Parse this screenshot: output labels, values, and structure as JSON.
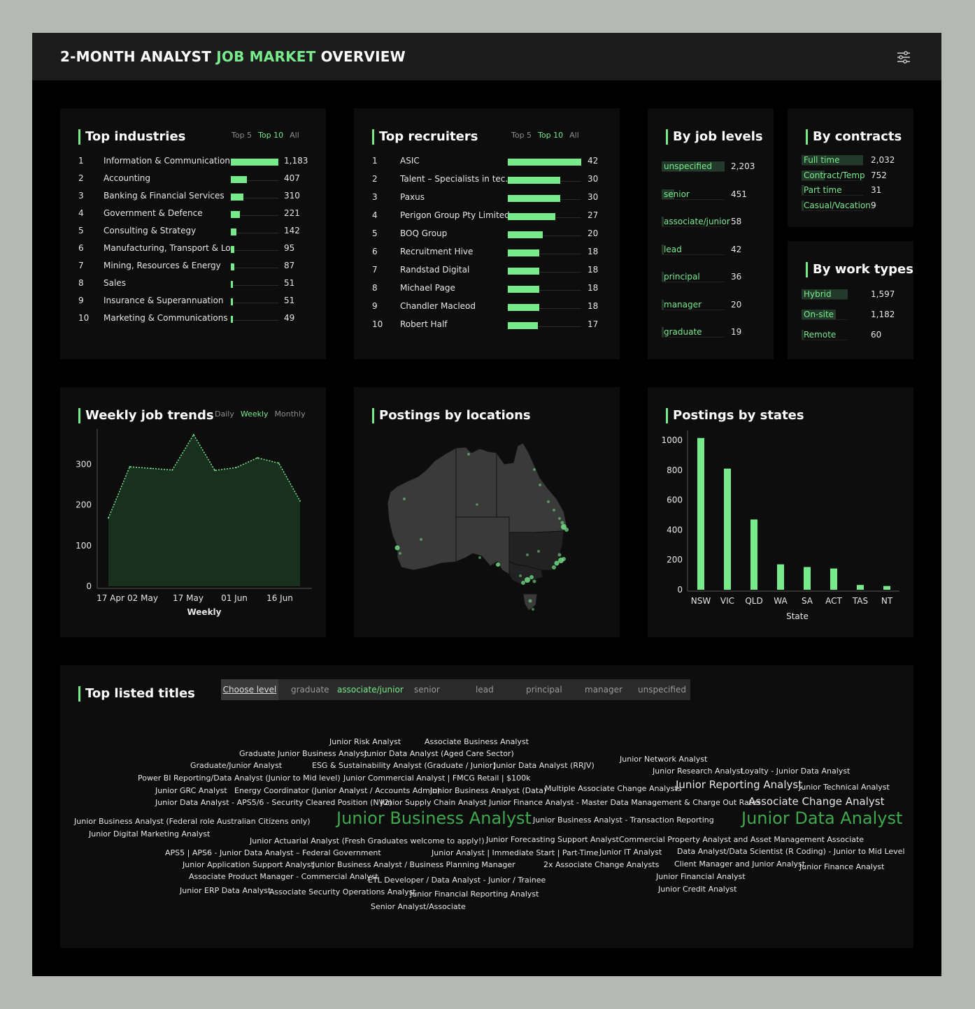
{
  "header": {
    "title_part1": "2-MONTH ANALYST ",
    "title_highlight": "JOB MARKET",
    "title_part2": " OVERVIEW",
    "settings_icon": "sliders-icon"
  },
  "colors": {
    "accent": "#77ea8c",
    "card_bg": "#0d0d0d",
    "page_bg": "#000000"
  },
  "industries": {
    "title": "Top industries",
    "tabs": [
      "Top 5",
      "Top 10",
      "All"
    ],
    "active_tab": "Top 10",
    "max": 1183,
    "rows": [
      {
        "rank": "1",
        "label": "Information & Communication ..",
        "value": 1183,
        "display": "1,183"
      },
      {
        "rank": "2",
        "label": "Accounting",
        "value": 407,
        "display": "407"
      },
      {
        "rank": "3",
        "label": "Banking & Financial Services",
        "value": 310,
        "display": "310"
      },
      {
        "rank": "4",
        "label": "Government & Defence",
        "value": 221,
        "display": "221"
      },
      {
        "rank": "5",
        "label": "Consulting & Strategy",
        "value": 142,
        "display": "142"
      },
      {
        "rank": "6",
        "label": "Manufacturing, Transport & Lo..",
        "value": 95,
        "display": "95"
      },
      {
        "rank": "7",
        "label": "Mining, Resources & Energy",
        "value": 87,
        "display": "87"
      },
      {
        "rank": "8",
        "label": "Sales",
        "value": 51,
        "display": "51"
      },
      {
        "rank": "9",
        "label": "Insurance & Superannuation",
        "value": 51,
        "display": "51"
      },
      {
        "rank": "10",
        "label": "Marketing & Communications",
        "value": 49,
        "display": "49"
      }
    ]
  },
  "recruiters": {
    "title": "Top recruiters",
    "tabs": [
      "Top 5",
      "Top 10",
      "All"
    ],
    "active_tab": "Top 10",
    "max": 42,
    "rows": [
      {
        "rank": "1",
        "label": "ASIC",
        "value": 42,
        "display": "42"
      },
      {
        "rank": "2",
        "label": "Talent – Specialists in tec..",
        "value": 30,
        "display": "30"
      },
      {
        "rank": "3",
        "label": "Paxus",
        "value": 30,
        "display": "30"
      },
      {
        "rank": "4",
        "label": "Perigon Group Pty Limited",
        "value": 27,
        "display": "27"
      },
      {
        "rank": "5",
        "label": "BOQ Group",
        "value": 20,
        "display": "20"
      },
      {
        "rank": "6",
        "label": "Recruitment Hive",
        "value": 18,
        "display": "18"
      },
      {
        "rank": "7",
        "label": "Randstad Digital",
        "value": 18,
        "display": "18"
      },
      {
        "rank": "8",
        "label": "Michael Page",
        "value": 18,
        "display": "18"
      },
      {
        "rank": "9",
        "label": "Chandler Macleod",
        "value": 18,
        "display": "18"
      },
      {
        "rank": "10",
        "label": "Robert Half",
        "value": 17,
        "display": "17"
      }
    ]
  },
  "job_levels": {
    "title": "By job levels",
    "max": 2203,
    "rows": [
      {
        "label": "unspecified",
        "value": 2203,
        "display": "2,203"
      },
      {
        "label": "senior",
        "value": 451,
        "display": "451"
      },
      {
        "label": "associate/junior",
        "value": 58,
        "display": "58"
      },
      {
        "label": "lead",
        "value": 42,
        "display": "42"
      },
      {
        "label": "principal",
        "value": 36,
        "display": "36"
      },
      {
        "label": "manager",
        "value": 20,
        "display": "20"
      },
      {
        "label": "graduate",
        "value": 19,
        "display": "19"
      }
    ]
  },
  "contracts": {
    "title": "By contracts",
    "max": 2032,
    "rows": [
      {
        "label": "Full time",
        "value": 2032,
        "display": "2,032"
      },
      {
        "label": "Contract/Temp",
        "value": 752,
        "display": "752"
      },
      {
        "label": "Part time",
        "value": 31,
        "display": "31"
      },
      {
        "label": "Casual/Vacation",
        "value": 9,
        "display": "9"
      }
    ]
  },
  "work_types": {
    "title": "By work types",
    "max": 1597,
    "rows": [
      {
        "label": "Hybrid",
        "value": 1597,
        "display": "1,597"
      },
      {
        "label": "On-site",
        "value": 1182,
        "display": "1,182"
      },
      {
        "label": "Remote",
        "value": 60,
        "display": "60"
      }
    ]
  },
  "weekly_trends": {
    "title": "Weekly job trends",
    "tabs": [
      "Daily",
      "Weekly",
      "Monthly"
    ],
    "active_tab": "Weekly",
    "xlabel": "Weekly",
    "x_ticks": [
      "17 Apr",
      "02 May",
      "17 May",
      "01 Jun",
      "16 Jun"
    ],
    "y_ticks": [
      "0",
      "100",
      "200",
      "300"
    ],
    "chart_data": {
      "type": "area",
      "ylim": [
        0,
        380
      ],
      "values": [
        168,
        294,
        290,
        286,
        373,
        285,
        292,
        316,
        303,
        210
      ]
    }
  },
  "locations": {
    "title": "Postings by locations"
  },
  "states": {
    "title": "Postings by states",
    "chart_data": {
      "type": "bar",
      "categories": [
        "NSW",
        "VIC",
        "QLD",
        "WA",
        "SA",
        "ACT",
        "TAS",
        "NT"
      ],
      "values": [
        1015,
        810,
        470,
        170,
        152,
        142,
        32,
        25
      ],
      "xlabel": "State",
      "ylim": [
        0,
        1000
      ],
      "y_ticks": [
        "0",
        "200",
        "400",
        "600",
        "800",
        "1000"
      ]
    }
  },
  "titles": {
    "title": "Top listed titles",
    "choose_label": "Choose level",
    "levels": [
      "graduate",
      "associate/junior",
      "senior",
      "lead",
      "principal",
      "manager",
      "unspecified"
    ],
    "active_level": "associate/junior",
    "words": [
      "Junior Risk Analyst",
      "Associate Business Analyst",
      "Graduate Junior Business Analyst",
      "Junior Data Analyst (Aged Care Sector)",
      "Graduate/Junior Analyst",
      "ESG & Sustainability Analyst (Graduate / Junior)",
      "Junior Data Analyst (RRJV)",
      "Junior Network Analyst",
      "Junior Research Analyst",
      "Loyalty - Junior Data Analyst",
      "Power BI Reporting/Data Analyst (Junior to Mid level)",
      "Junior Commercial Analyst | FMCG Retail | $100k",
      "Junior GRC Analyst",
      "Energy Coordinator (Junior Analyst / Accounts Admin)",
      "Junior Business Analyst (Data)",
      "Multiple Associate Change Analysts",
      "Junior Reporting Analyst",
      "Junior Technical Analyst",
      "Junior Data Analyst - APS5/6 - Security Cleared Position (NV2)",
      "Junior Supply Chain Analyst",
      "Junior Finance Analyst - Master Data Management & Charge Out Rates",
      "Associate Change Analyst",
      "Junior Business Analyst (Federal role Australian Citizens only)",
      "Junior Business Analyst",
      "Junior Business Analyst - Transaction Reporting",
      "Junior Data Analyst",
      "Junior Digital Marketing Analyst",
      "Junior Actuarial Analyst (Fresh Graduates welcome to apply!)",
      "Junior Forecasting Support Analyst",
      "Commercial Property Analyst and Asset Management Associate",
      "APS5 | APS6 - Junior Data Analyst – Federal Government",
      "Junior Analyst | Immediate Start | Part-Time",
      "Junior IT Analyst",
      "Data Analyst/Data Scientist (R Coding) - Junior to Mid Level",
      "Junior Application Support Analyst",
      "Junior Business Analyst / Business Planning Manager",
      "2x Associate Change Analysts",
      "Client Manager and Junior Analyst",
      "Junior Finance Analyst",
      "Associate Product Manager - Commercial Analyst",
      "ETL Developer / Data Analyst - Junior / Trainee",
      "Junior Financial Analyst",
      "Junior ERP Data Analyst",
      "Associate Security Operations Analyst",
      "Junior Financial Reporting Analyst",
      "Junior Credit Analyst",
      "Senior Analyst/Associate"
    ]
  }
}
